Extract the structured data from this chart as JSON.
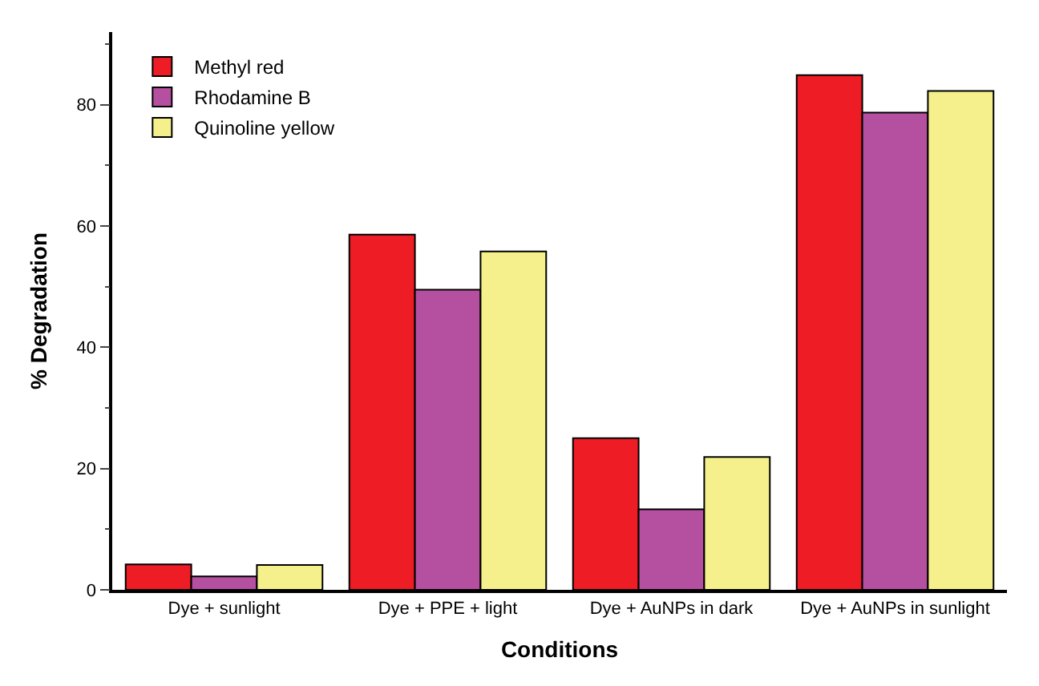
{
  "chart_data": {
    "type": "bar",
    "xlabel": "Conditions",
    "ylabel": "% Degradation",
    "categories": [
      "Dye + sunlight",
      "Dye + PPE + light",
      "Dye + AuNPs in dark",
      "Dye + AuNPs in sunlight"
    ],
    "series": [
      {
        "name": "Methyl red",
        "color": "#ee1c24",
        "values": [
          4.2,
          58.6,
          25.0,
          84.9
        ]
      },
      {
        "name": "Rhodamine B",
        "color": "#b54fa0",
        "values": [
          2.2,
          49.5,
          13.3,
          78.7
        ]
      },
      {
        "name": "Quinoline yellow",
        "color": "#f5f08c",
        "values": [
          4.1,
          55.8,
          21.9,
          82.3
        ]
      }
    ],
    "ylim": [
      0,
      92
    ],
    "yticks": [
      0,
      20,
      40,
      60,
      80
    ],
    "legend": "top left"
  }
}
